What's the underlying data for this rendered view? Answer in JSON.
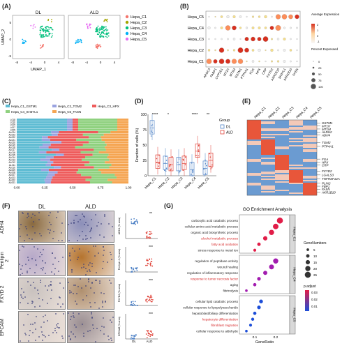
{
  "panels": {
    "A": {
      "label": "(A)",
      "plot_titles": [
        "DL",
        "ALD"
      ],
      "xlabel": "UMAP_1",
      "ylabel": "UMAP_2",
      "x_ticks": [
        "-8",
        "-4",
        "0",
        "4"
      ],
      "y_ticks": [
        "-5",
        "0",
        "5"
      ],
      "legend": [
        {
          "name": "Hepa_C1",
          "color": "#f4766d"
        },
        {
          "name": "Hepa_C2",
          "color": "#a3a500"
        },
        {
          "name": "Hepa_C3",
          "color": "#00bf7d"
        },
        {
          "name": "Hepa_C4",
          "color": "#00b0f6"
        },
        {
          "name": "Hepa_C5",
          "color": "#e76bf3"
        }
      ]
    },
    "B": {
      "label": "(B)",
      "rows": [
        "Hepa_C5",
        "Hepa_C4",
        "Hepa_C3",
        "Hepa_C2",
        "Hepa_C1"
      ],
      "genes": [
        "APOC3",
        "FABP1",
        "CYP2E1",
        "MT1H",
        "MT1M",
        "GSTM1",
        "PTP4A1",
        "FGA",
        "HPX",
        "CRP",
        "FXYD2",
        "AKR1B10",
        "SH3YL1",
        "AKR1B10",
        "FASN"
      ],
      "legend_avg_title": "Average Expression",
      "legend_avg_ticks": [
        "2",
        "1",
        "0",
        "-1"
      ],
      "legend_pct_title": "Percent Expressed",
      "legend_pct_values": [
        "0",
        "25",
        "50",
        "75",
        "100"
      ]
    },
    "C": {
      "label": "(C)",
      "legend": [
        {
          "name": "Hepa_C1_GSTM1",
          "color": "#5fbcd3"
        },
        {
          "name": "Hepa_C2_TGM2",
          "color": "#9aa3e0"
        },
        {
          "name": "Hepa_C3_HPX",
          "color": "#ee5c5c"
        },
        {
          "name": "Hepa_C4_SH3YL1",
          "color": "#8fd17f"
        },
        {
          "name": "Hepa_C5_FASN",
          "color": "#f5a552"
        }
      ],
      "samples": [
        "L018",
        "L010",
        "L009",
        "L007",
        "L005",
        "AL024",
        "AL023",
        "AL022",
        "AL021",
        "AL020",
        "AL019",
        "AL018",
        "AL017",
        "AL016",
        "AL015",
        "AL014",
        "AL013",
        "AL012",
        "AL011",
        "AL010",
        "AL009",
        "AL008",
        "AL007",
        "AL003",
        "AL002",
        "AL001"
      ],
      "x_ticks": [
        "0.00",
        "0.25",
        "0.50",
        "0.75",
        "1.00"
      ]
    },
    "D": {
      "label": "(D)",
      "ylabel": "Fraction of cells (%)",
      "y_ticks": [
        "0",
        "25",
        "50",
        "75",
        "100"
      ],
      "legend_title": "Group",
      "groups": [
        {
          "name": "DL",
          "color": "#4f82c6"
        },
        {
          "name": "ALD",
          "color": "#e0443a"
        }
      ],
      "categories": [
        "Hepa_C1",
        "Hepa_C2",
        "Hepa_C3",
        "Hepa_C4",
        "Hepa_C5"
      ],
      "significance": [
        "****",
        "*",
        "",
        "****",
        "**"
      ]
    },
    "E": {
      "label": "(E)",
      "columns": [
        "Hepa_C1",
        "Hepa_C2",
        "Hepa_C3",
        "Hepa_C4",
        "Hepa_C5"
      ],
      "genes": [
        "GSTM1",
        "MT1H",
        "MT1M",
        "ALDH2",
        "ADH4",
        "TGM2",
        "PTP4A1",
        "FGA",
        "HPX",
        "CRP",
        "FXYD2",
        "LGALS3",
        "TNFRSF12A",
        "PLIN2",
        "FBP1",
        "FASN",
        "AKR1B10"
      ]
    },
    "F": {
      "label": "(F)",
      "group_titles": [
        "DL",
        "ALD"
      ],
      "rows": [
        "ADH4",
        "Perilipin 2",
        "FXYD 2",
        "EPCAM"
      ],
      "ylabels": [
        "ADH4 (% area)",
        "Perilipin 2 (% area)",
        "FXYD2 (% area)",
        "EPCAM (% area)"
      ],
      "x_ticks": [
        "DL",
        "ALD"
      ],
      "significance": [
        "**",
        "***",
        "***",
        "***"
      ]
    },
    "G": {
      "label": "(G)",
      "title": "GO Enrichment Analysis",
      "xlabel": "GeneRatio",
      "x_ticks": [
        "0.1",
        "0.2"
      ],
      "strips": [
        "Hepa_C1",
        "Hepa_C4",
        "Hepa_C5"
      ],
      "size_legend_title": "GeneNumbers",
      "size_legend_values": [
        "5",
        "10",
        "15",
        "20",
        "25"
      ],
      "color_legend_title": "p.adjust",
      "color_legend_ticks": [
        "0.03",
        "0.02",
        "0.01"
      ],
      "terms": [
        {
          "text": "carboxylic acid catabolic process",
          "ratio": 0.22,
          "genes": 25,
          "highlight": false
        },
        {
          "text": "cellular amino acid metabolic process",
          "ratio": 0.2,
          "genes": 22,
          "highlight": false
        },
        {
          "text": "organic acid biosynthetic process",
          "ratio": 0.18,
          "genes": 20,
          "highlight": false
        },
        {
          "text": "alcohol metabolic process",
          "ratio": 0.15,
          "genes": 15,
          "highlight": true
        },
        {
          "text": "fatty acid oxidation",
          "ratio": 0.12,
          "genes": 10,
          "highlight": true
        },
        {
          "text": "stress response to metal ion",
          "ratio": 0.1,
          "genes": 7,
          "highlight": false
        },
        {
          "text": "regulation of peptidase activity",
          "ratio": 0.2,
          "genes": 20,
          "highlight": false
        },
        {
          "text": "wound healing",
          "ratio": 0.18,
          "genes": 18,
          "highlight": false
        },
        {
          "text": "regulation of inflammatory response",
          "ratio": 0.15,
          "genes": 14,
          "highlight": false
        },
        {
          "text": "response to tumor necrosis factor",
          "ratio": 0.12,
          "genes": 11,
          "highlight": true
        },
        {
          "text": "aging",
          "ratio": 0.1,
          "genes": 9,
          "highlight": false
        },
        {
          "text": "fibrinolysis",
          "ratio": 0.06,
          "genes": 5,
          "highlight": false
        },
        {
          "text": "cellular lipid catabolic process",
          "ratio": 0.13,
          "genes": 12,
          "highlight": false
        },
        {
          "text": "cellular response to lipopolysaccharide",
          "ratio": 0.12,
          "genes": 11,
          "highlight": false
        },
        {
          "text": "hepatoblast/biliary differentiation",
          "ratio": 0.1,
          "genes": 9,
          "highlight": false
        },
        {
          "text": "hepatocyte differentiation",
          "ratio": 0.09,
          "genes": 8,
          "highlight": true
        },
        {
          "text": "fibroblast migration",
          "ratio": 0.08,
          "genes": 7,
          "highlight": true
        },
        {
          "text": "cellular response to aldehyde",
          "ratio": 0.06,
          "genes": 5,
          "highlight": false
        }
      ]
    }
  }
}
